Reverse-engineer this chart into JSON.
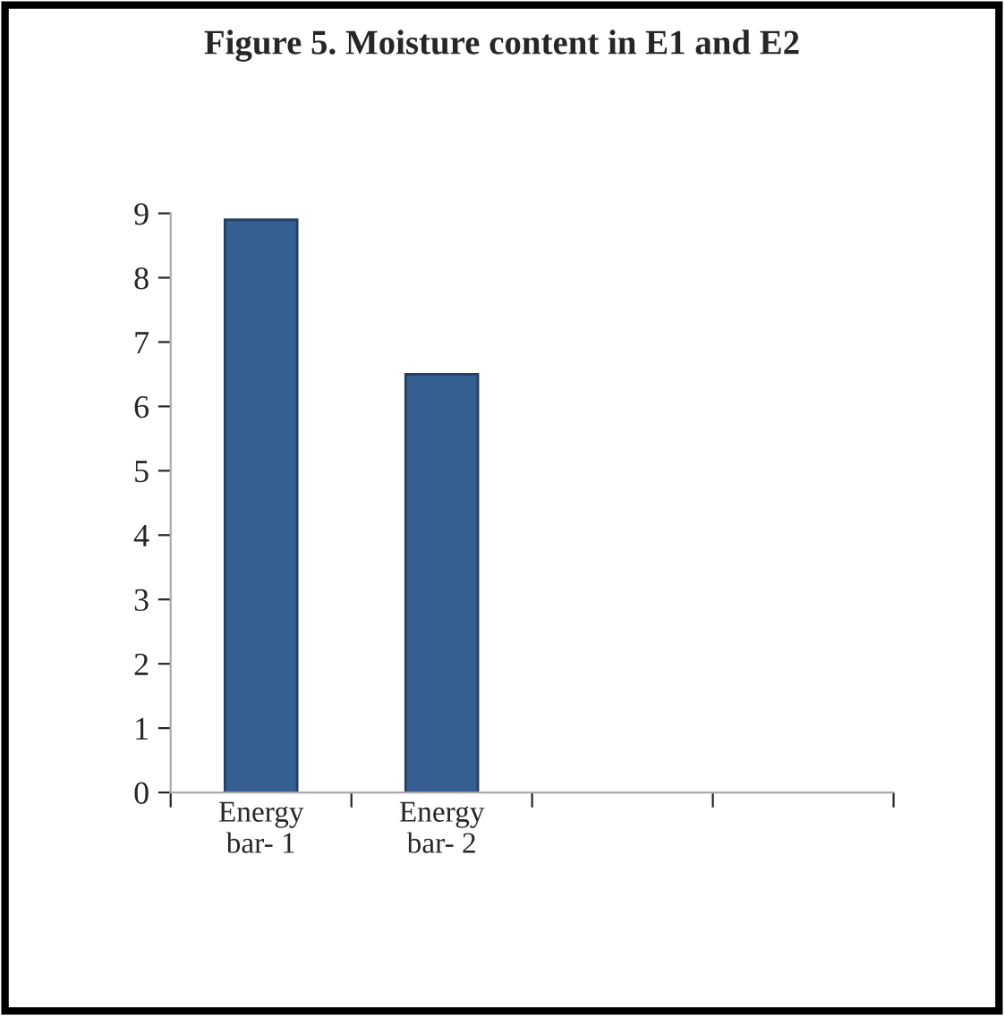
{
  "chart_data": {
    "type": "bar",
    "title": "Figure 5. Moisture content in E1 and E2",
    "categories": [
      "Energy\nbar- 1",
      "Energy\nbar- 2",
      null,
      null
    ],
    "values": [
      8.9,
      6.5,
      null,
      null
    ],
    "color": "#365f91",
    "ylim": [
      0,
      9
    ],
    "yticks": [
      0,
      1,
      2,
      3,
      4,
      5,
      6,
      7,
      8,
      9
    ],
    "grid": false
  }
}
